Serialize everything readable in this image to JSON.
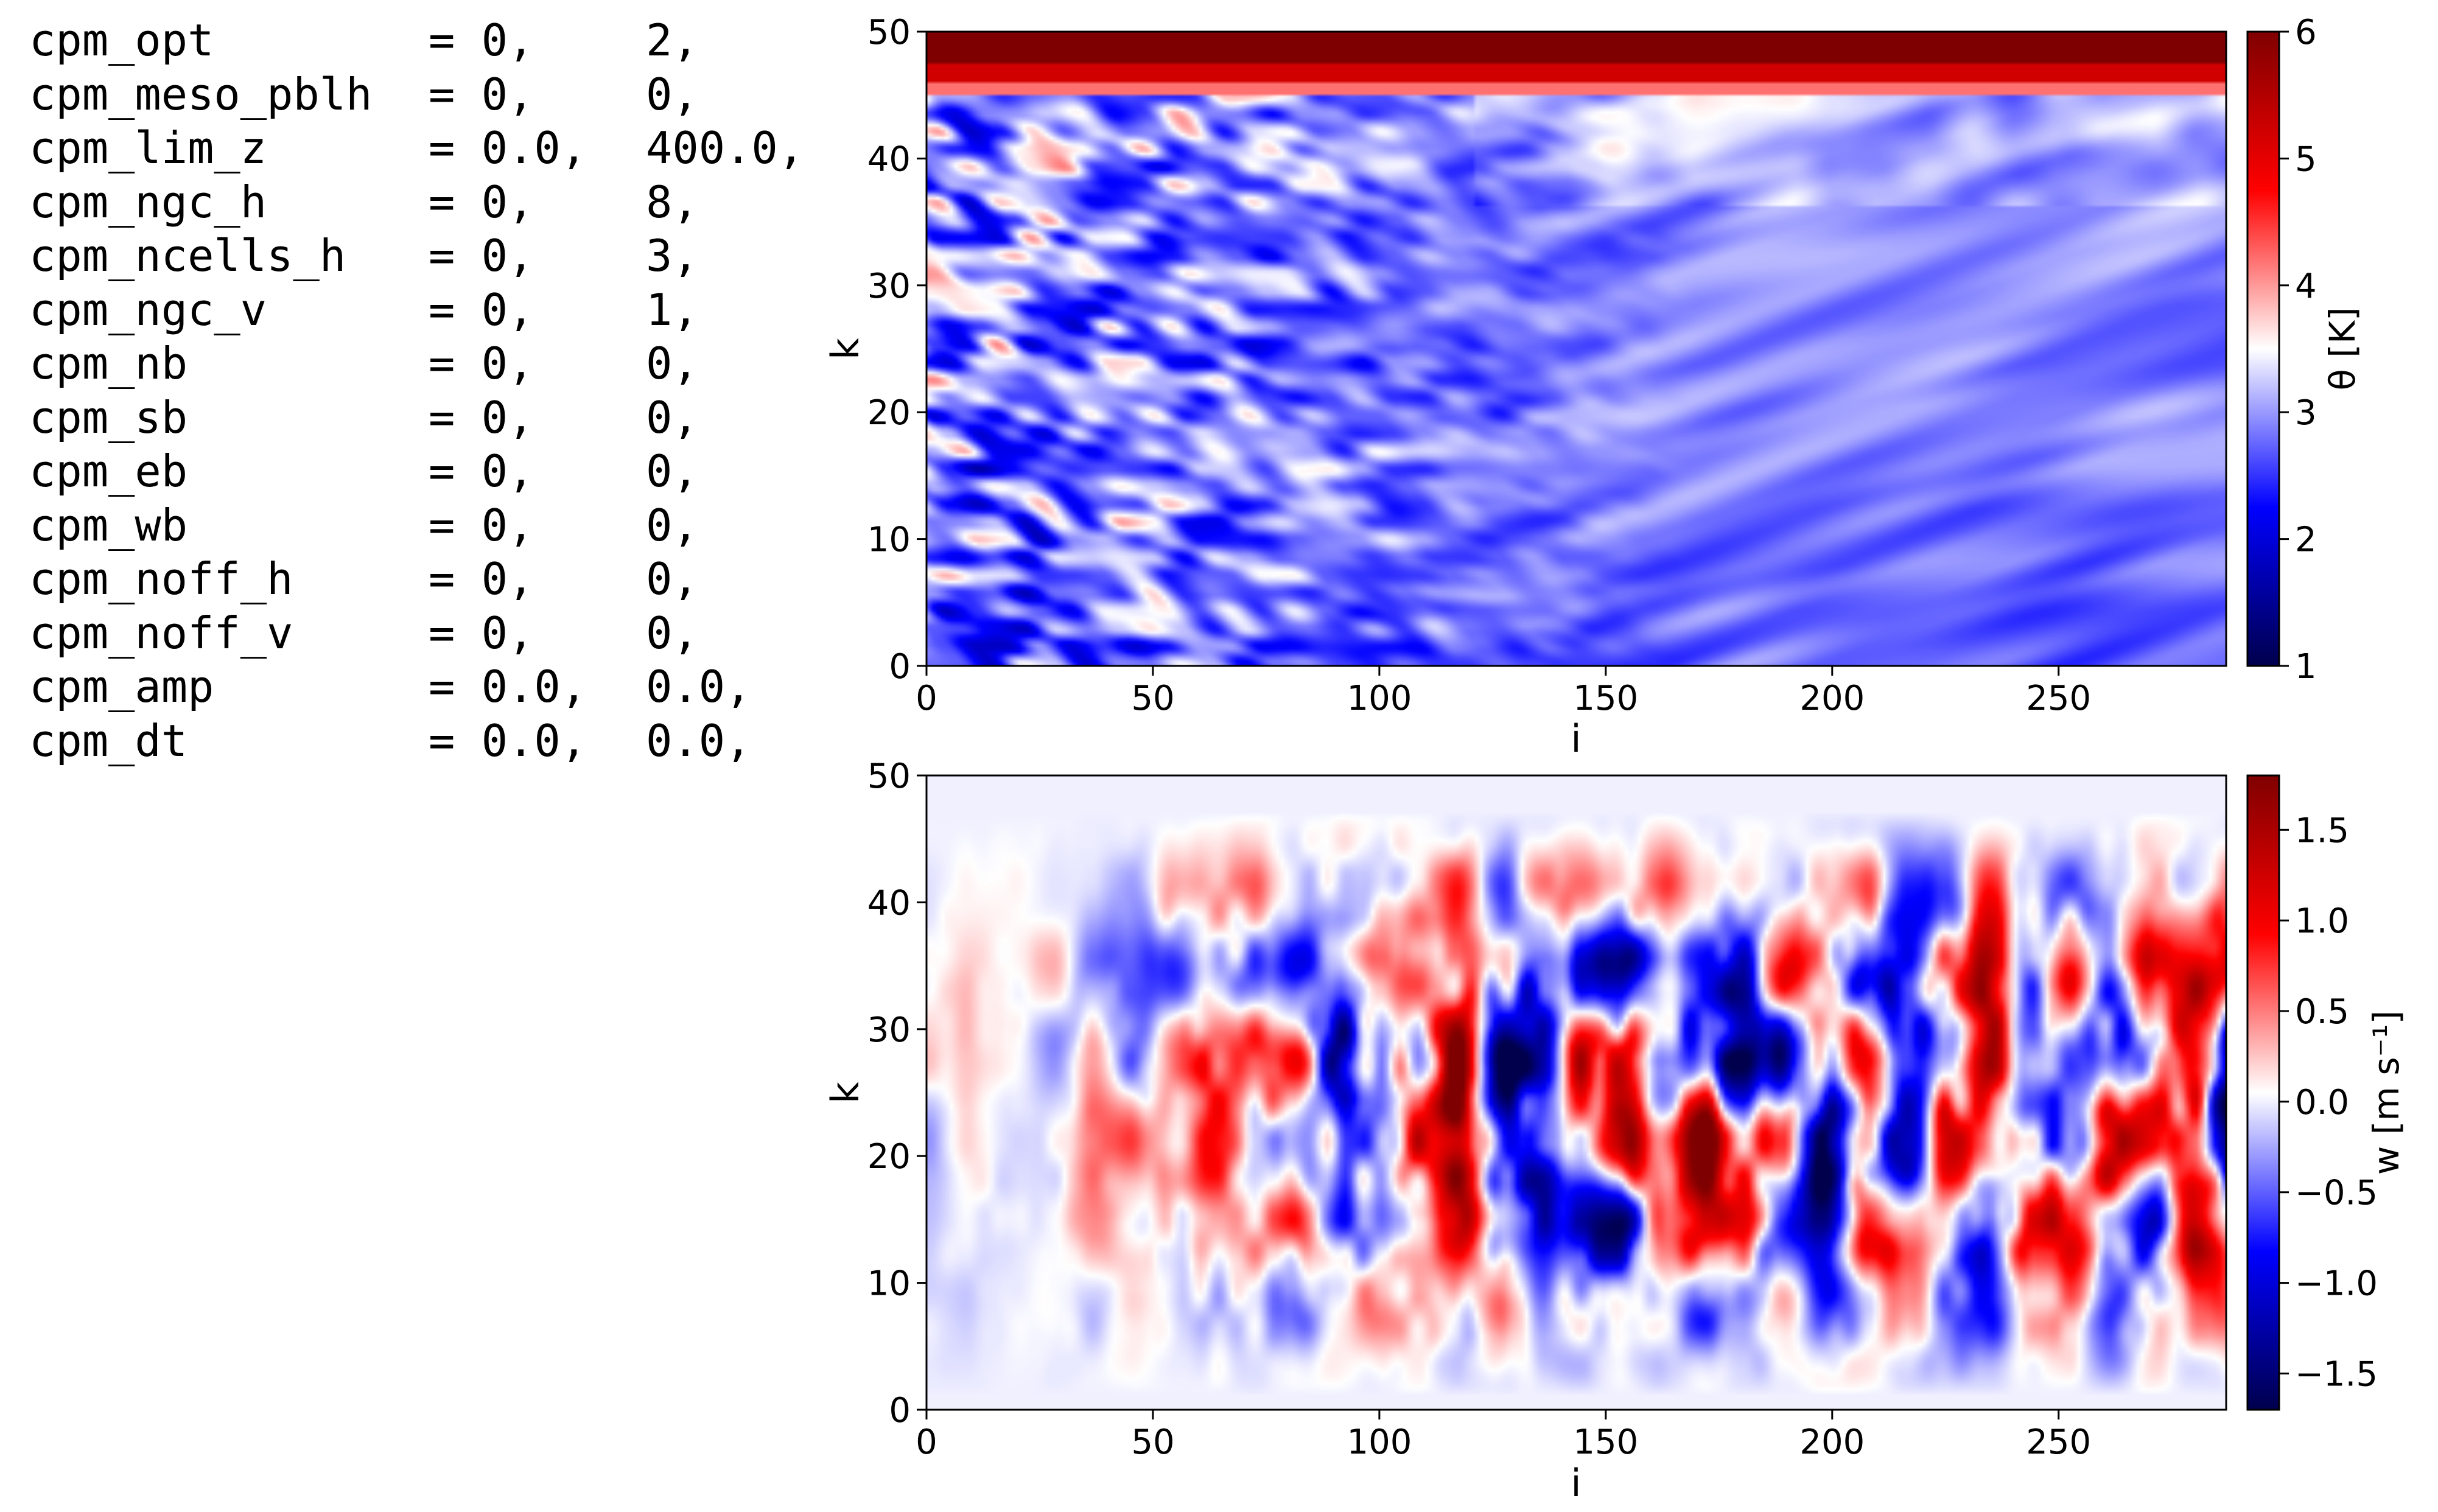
{
  "params": [
    {
      "name": "cpm_opt",
      "v1": "= 0,",
      "v2": "2,"
    },
    {
      "name": "cpm_meso_pblh",
      "v1": "= 0,",
      "v2": "0,"
    },
    {
      "name": "cpm_lim_z",
      "v1": "= 0.0,",
      "v2": "400.0,"
    },
    {
      "name": "cpm_ngc_h",
      "v1": "= 0,",
      "v2": "8,"
    },
    {
      "name": "cpm_ncells_h",
      "v1": "= 0,",
      "v2": "3,"
    },
    {
      "name": "cpm_ngc_v",
      "v1": "= 0,",
      "v2": "1,"
    },
    {
      "name": "cpm_nb",
      "v1": "= 0,",
      "v2": "0,"
    },
    {
      "name": "cpm_sb",
      "v1": "= 0,",
      "v2": "0,"
    },
    {
      "name": "cpm_eb",
      "v1": "= 0,",
      "v2": "0,"
    },
    {
      "name": "cpm_wb",
      "v1": "= 0,",
      "v2": "0,"
    },
    {
      "name": "cpm_noff_h",
      "v1": "= 0,",
      "v2": "0,"
    },
    {
      "name": "cpm_noff_v",
      "v1": "= 0,",
      "v2": "0,"
    },
    {
      "name": "cpm_amp",
      "v1": "= 0.0,",
      "v2": "0.0,"
    },
    {
      "name": "cpm_dt",
      "v1": "= 0.0,",
      "v2": "0.0,"
    }
  ],
  "chart_data": [
    {
      "type": "heatmap",
      "title": "",
      "xlabel": "i",
      "ylabel": "k",
      "xlim": [
        0,
        287
      ],
      "ylim": [
        0,
        50
      ],
      "xticks": [
        0,
        50,
        100,
        150,
        200,
        250
      ],
      "yticks": [
        0,
        10,
        20,
        30,
        40,
        50
      ],
      "colorbar": {
        "label": "θ [K]",
        "range": [
          1,
          6
        ],
        "ticks": [
          "1",
          "2",
          "3",
          "4",
          "5",
          "6"
        ],
        "colormap": "seismic"
      },
      "field_description": "theta perturbation: ~3 K near-uniform light blue at low levels on right, strong blue/red streaks on left half in 0-40 k, warm ~6 K layer from k=46 to 50 across entire domain"
    },
    {
      "type": "heatmap",
      "title": "",
      "xlabel": "i",
      "ylabel": "k",
      "xlim": [
        0,
        287
      ],
      "ylim": [
        0,
        50
      ],
      "xticks": [
        0,
        50,
        100,
        150,
        200,
        250
      ],
      "yticks": [
        0,
        10,
        20,
        30,
        40,
        50
      ],
      "colorbar": {
        "label": "w [m s⁻¹]",
        "range": [
          -1.7,
          1.8
        ],
        "ticks": [
          "−1.5",
          "−1.0",
          "−0.5",
          "0.0",
          "0.5",
          "1.0",
          "1.5"
        ],
        "colormap": "seismic"
      },
      "field_description": "vertical velocity: alternating updraft/downdraft columns strongest between i=50 and i=287, k=5 to 45, weak near left and top edges"
    }
  ],
  "colors": {
    "seismic_low": "#00004c",
    "seismic_mid": "#ffffff",
    "seismic_high": "#7f0000"
  }
}
